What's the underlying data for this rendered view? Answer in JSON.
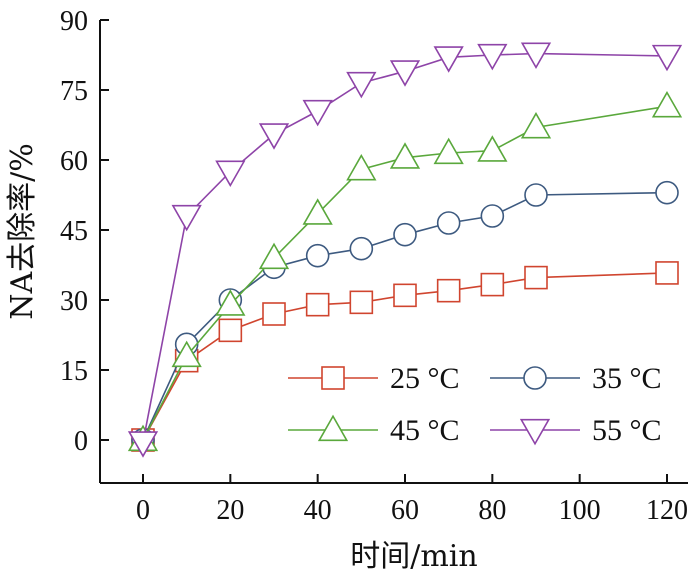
{
  "chart_data": {
    "type": "line",
    "xlabel": "时间/min",
    "ylabel": "NA去除率/%",
    "xlim": [
      -10,
      125
    ],
    "ylim": [
      -10,
      90
    ],
    "xticks": [
      0,
      20,
      40,
      60,
      80,
      100,
      120
    ],
    "yticks": [
      0,
      15,
      30,
      45,
      60,
      75,
      90
    ],
    "x": [
      0,
      10,
      20,
      30,
      40,
      50,
      60,
      70,
      80,
      90,
      120
    ],
    "grid": false,
    "legend_position": "bottom-right",
    "series": [
      {
        "name": "25 °C",
        "marker": "square",
        "color": "#d0452f",
        "values": [
          0,
          17,
          23.5,
          27,
          29,
          29.5,
          31,
          32,
          33.3,
          34.8,
          35.8
        ]
      },
      {
        "name": "35 °C",
        "marker": "circle",
        "color": "#3d5a80",
        "values": [
          0,
          20.5,
          30,
          37,
          39.5,
          41,
          44,
          46.5,
          48,
          52.5,
          53
        ]
      },
      {
        "name": "45 °C",
        "marker": "triangle-up",
        "color": "#5aa83c",
        "values": [
          0,
          18,
          29,
          39,
          48.5,
          58,
          60.5,
          61.5,
          62,
          67,
          71.5
        ]
      },
      {
        "name": "55 °C",
        "marker": "triangle-down",
        "color": "#8e44a8",
        "values": [
          -0.5,
          48,
          57.5,
          65.5,
          70.5,
          76.5,
          79,
          82,
          82.5,
          82.8,
          82.3
        ]
      }
    ]
  }
}
